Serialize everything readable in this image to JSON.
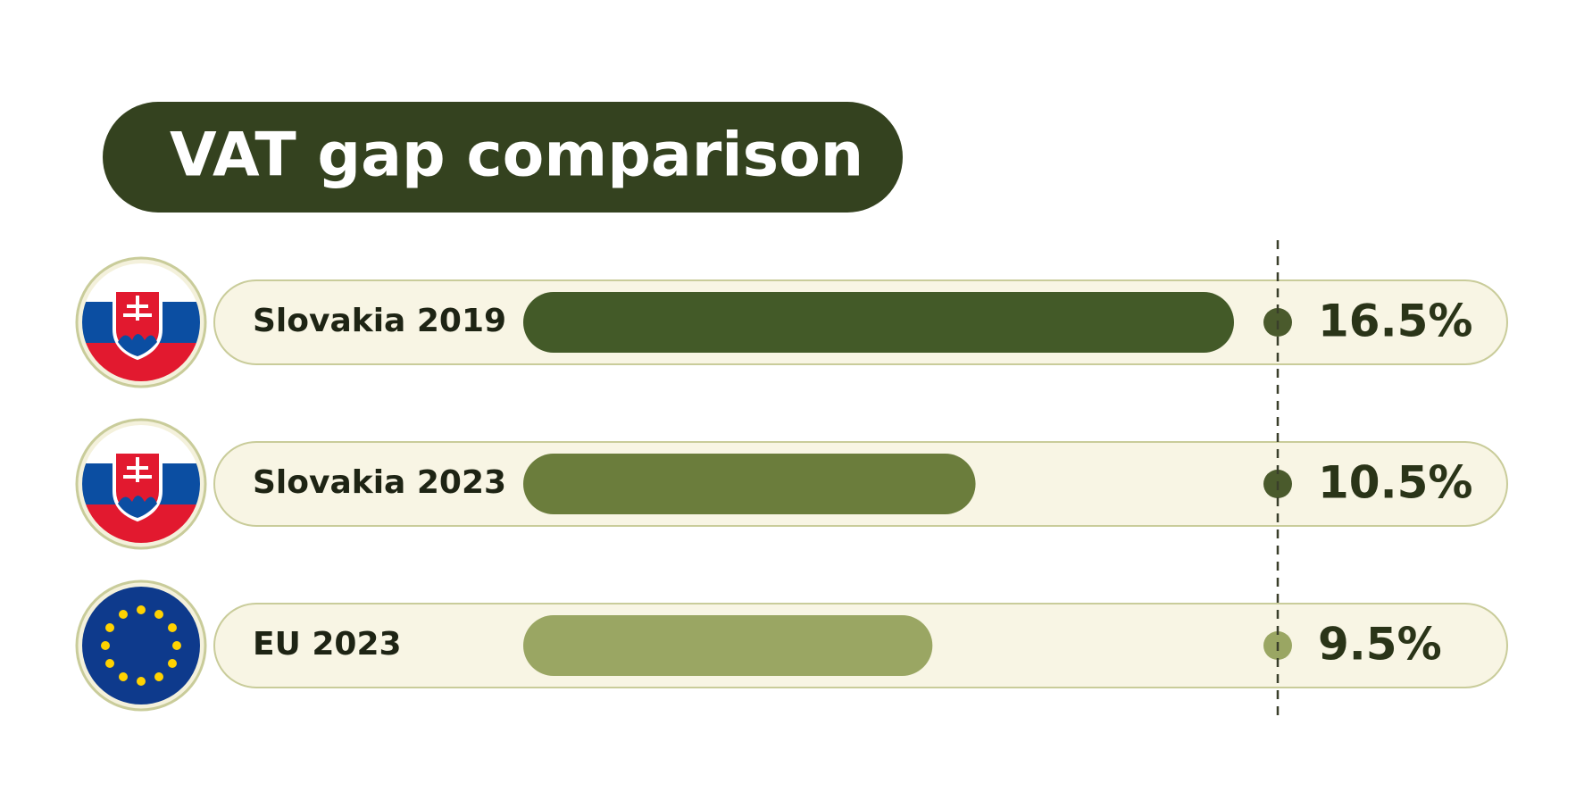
{
  "chart_data": {
    "type": "bar",
    "orientation": "horizontal",
    "title": "VAT gap comparison",
    "categories": [
      "Slovakia 2019",
      "Slovakia 2023",
      "EU 2023"
    ],
    "values": [
      16.5,
      10.5,
      9.5
    ],
    "value_labels": [
      "16.5%",
      "10.5%",
      "9.5%"
    ],
    "colors": [
      "#435a28",
      "#6b7d3c",
      "#9aa663"
    ]
  }
}
